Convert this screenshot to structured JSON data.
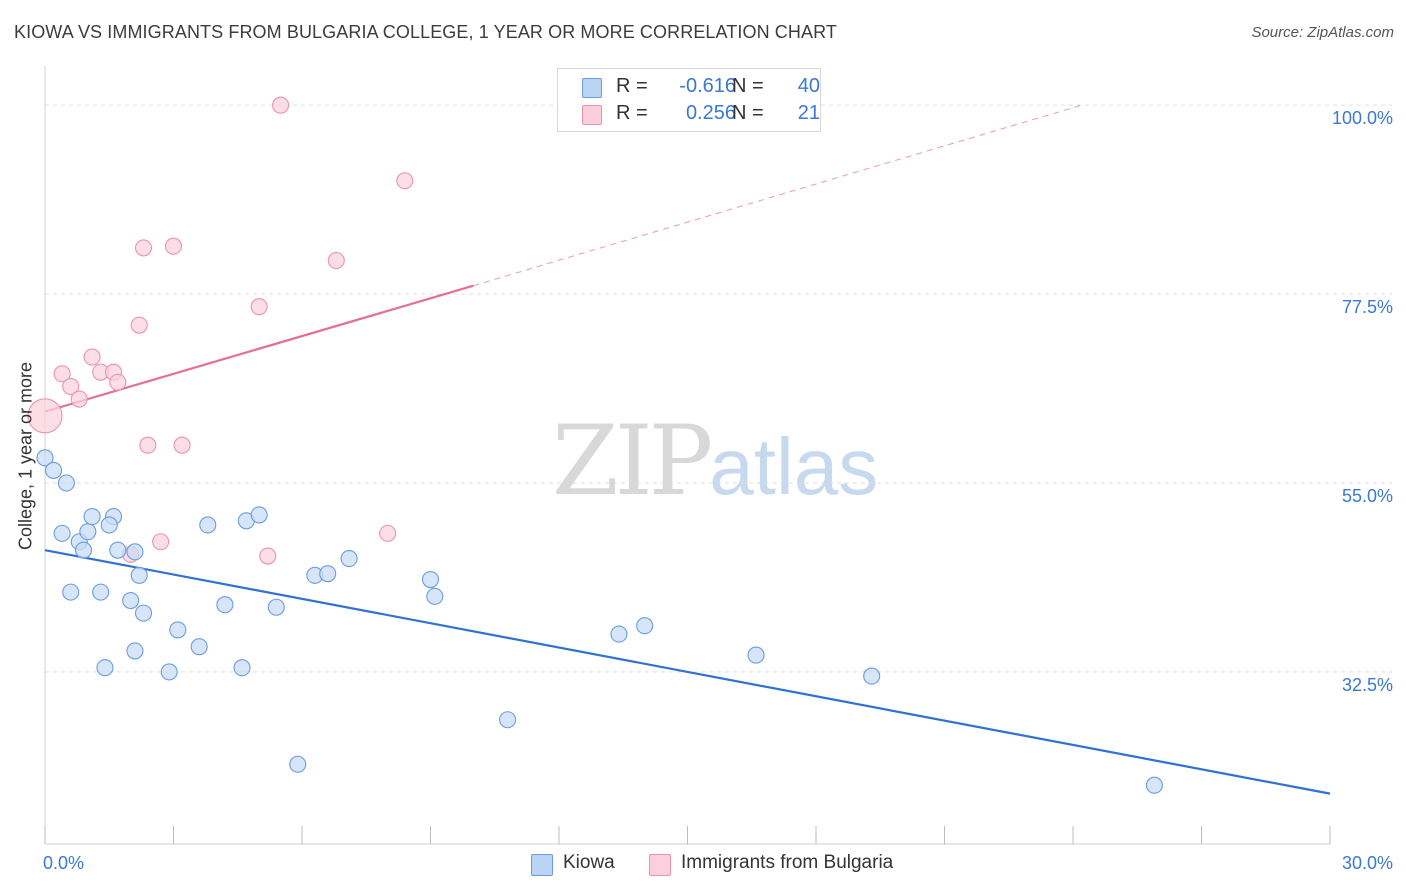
{
  "title": "KIOWA VS IMMIGRANTS FROM BULGARIA COLLEGE, 1 YEAR OR MORE CORRELATION CHART",
  "source": "Source: ZipAtlas.com",
  "watermark": {
    "zip": "ZIP",
    "atlas": "atlas"
  },
  "legend_stats": [
    {
      "swatch_color": "#bcd4f4",
      "border_color": "#6a9de0",
      "r_label": "R =",
      "r_value": "-0.616",
      "n_label": "N =",
      "n_value": "40"
    },
    {
      "swatch_color": "#fbcfdc",
      "border_color": "#ee8fab",
      "r_label": "R =",
      "r_value": "0.256",
      "n_label": "N =",
      "n_value": "21"
    }
  ],
  "colors": {
    "kiowa_fill": "#c9dcf5",
    "kiowa_stroke": "#6a9de0",
    "kiowa_line": "#2f72d2",
    "bulgaria_fill": "#fbd3df",
    "bulgaria_stroke": "#ec92ad",
    "bulgaria_line": "#e56e96",
    "axis_label": "#3a78d4",
    "grid": "#dddddd"
  },
  "chart_data": {
    "type": "scatter",
    "title": "KIOWA VS IMMIGRANTS FROM BULGARIA COLLEGE, 1 YEAR OR MORE CORRELATION CHART",
    "xlabel": "",
    "ylabel": "College, 1 year or more",
    "xlim": [
      0,
      30
    ],
    "ylim": [
      12,
      103
    ],
    "x_tick_labels": [
      "0.0%",
      "30.0%"
    ],
    "y_ticks": [
      32.5,
      55.0,
      77.5,
      100.0
    ],
    "y_tick_labels": [
      "32.5%",
      "55.0%",
      "77.5%",
      "100.0%"
    ],
    "grid": true,
    "legend_position": "bottom",
    "series": [
      {
        "name": "Kiowa",
        "points": [
          [
            0.0,
            58.0
          ],
          [
            0.2,
            56.5
          ],
          [
            0.5,
            55.0
          ],
          [
            0.4,
            49.0
          ],
          [
            0.8,
            48.0
          ],
          [
            1.0,
            49.2
          ],
          [
            1.1,
            51.0
          ],
          [
            1.6,
            51.0
          ],
          [
            1.5,
            50.0
          ],
          [
            0.9,
            47.0
          ],
          [
            1.7,
            47.0
          ],
          [
            0.6,
            42.0
          ],
          [
            1.3,
            42.0
          ],
          [
            2.1,
            46.8
          ],
          [
            2.2,
            44.0
          ],
          [
            2.0,
            41.0
          ],
          [
            2.3,
            39.5
          ],
          [
            1.4,
            33.0
          ],
          [
            2.1,
            35.0
          ],
          [
            2.9,
            32.5
          ],
          [
            3.1,
            37.5
          ],
          [
            3.6,
            35.5
          ],
          [
            3.8,
            50.0
          ],
          [
            4.2,
            40.5
          ],
          [
            4.6,
            33.0
          ],
          [
            4.7,
            50.5
          ],
          [
            5.0,
            51.2
          ],
          [
            5.4,
            40.2
          ],
          [
            5.9,
            21.5
          ],
          [
            6.3,
            44.0
          ],
          [
            6.6,
            44.2
          ],
          [
            7.1,
            46.0
          ],
          [
            9.0,
            43.5
          ],
          [
            9.1,
            41.5
          ],
          [
            10.8,
            26.8
          ],
          [
            13.4,
            37.0
          ],
          [
            14.0,
            38.0
          ],
          [
            16.6,
            34.5
          ],
          [
            19.3,
            32.0
          ],
          [
            25.9,
            19.0
          ]
        ],
        "trend": {
          "x": [
            0.0,
            30.0
          ],
          "y": [
            47.0,
            18.0
          ]
        },
        "legend_r": -0.616,
        "legend_n": 40
      },
      {
        "name": "Immigrants from Bulgaria",
        "points": [
          [
            0.0,
            63.0
          ],
          [
            0.4,
            68.0
          ],
          [
            0.6,
            66.5
          ],
          [
            0.8,
            65.0
          ],
          [
            1.1,
            70.0
          ],
          [
            1.3,
            68.2
          ],
          [
            1.6,
            68.2
          ],
          [
            1.7,
            67.0
          ],
          [
            2.2,
            73.8
          ],
          [
            2.3,
            83.0
          ],
          [
            3.0,
            83.2
          ],
          [
            2.4,
            59.5
          ],
          [
            3.2,
            59.5
          ],
          [
            2.7,
            48.0
          ],
          [
            2.0,
            46.5
          ],
          [
            5.0,
            76.0
          ],
          [
            5.2,
            46.3
          ],
          [
            5.5,
            100.0
          ],
          [
            6.8,
            81.5
          ],
          [
            8.0,
            49.0
          ],
          [
            8.4,
            91.0
          ]
        ],
        "trend": {
          "x": [
            0.0,
            10.0
          ],
          "y": [
            63.5,
            78.5
          ]
        },
        "trend_extension": {
          "x": [
            10.0,
            24.2
          ],
          "y": [
            78.5,
            100.0
          ]
        },
        "legend_r": 0.256,
        "legend_n": 21
      }
    ]
  }
}
